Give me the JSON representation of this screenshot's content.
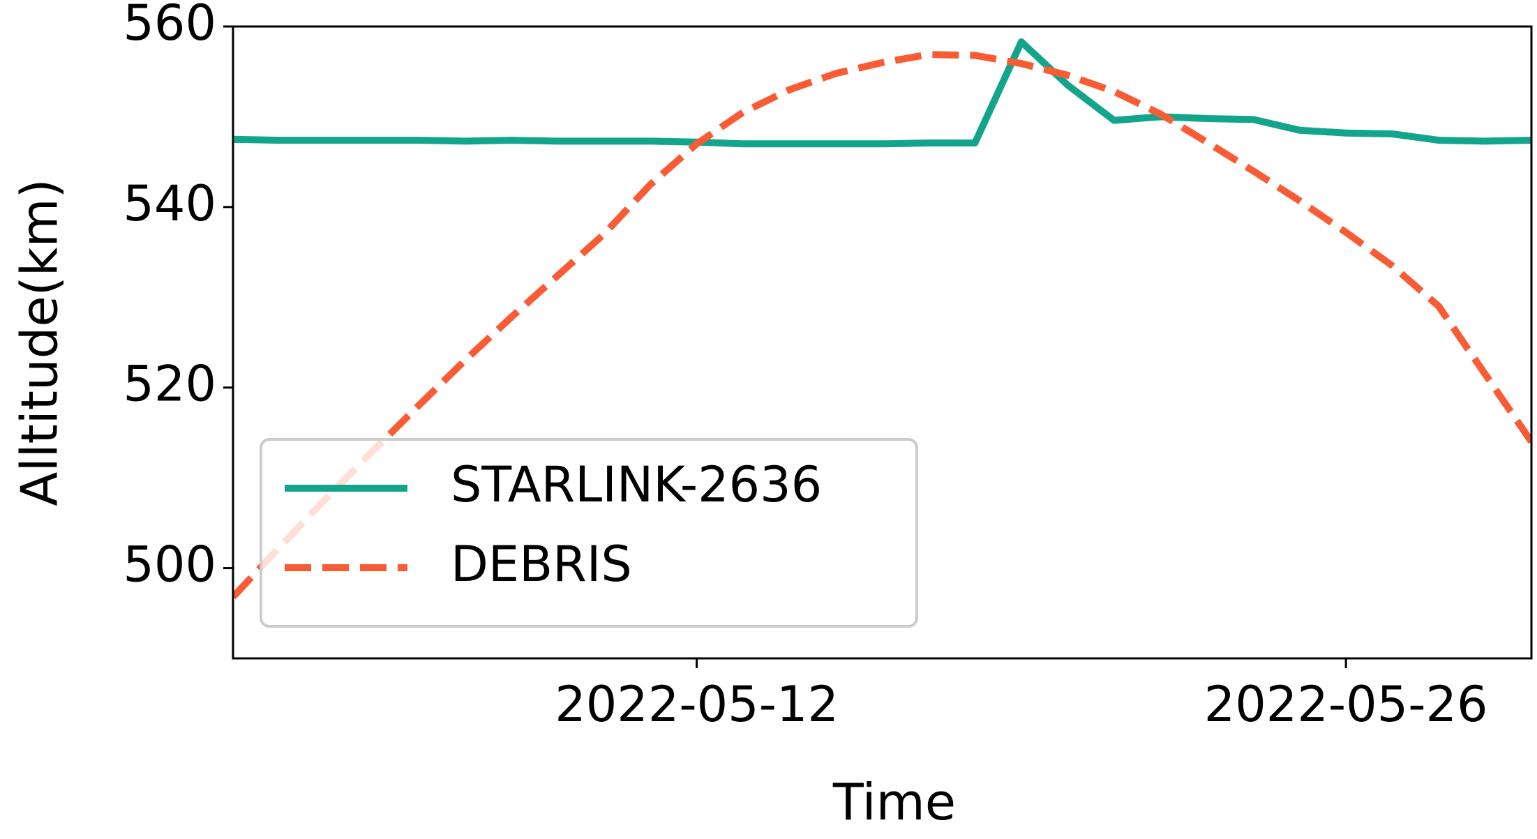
{
  "chart_data": {
    "type": "line",
    "x_label": "Time",
    "y_label": "Alltitude(km)",
    "x": [
      "2022-05-02",
      "2022-05-03",
      "2022-05-04",
      "2022-05-05",
      "2022-05-06",
      "2022-05-07",
      "2022-05-08",
      "2022-05-09",
      "2022-05-10",
      "2022-05-11",
      "2022-05-12",
      "2022-05-13",
      "2022-05-14",
      "2022-05-15",
      "2022-05-16",
      "2022-05-17",
      "2022-05-18",
      "2022-05-19",
      "2022-05-20",
      "2022-05-21",
      "2022-05-22",
      "2022-05-23",
      "2022-05-24",
      "2022-05-25",
      "2022-05-26",
      "2022-05-27",
      "2022-05-28",
      "2022-05-29",
      "2022-05-30"
    ],
    "series": [
      {
        "name": "STARLINK-2636",
        "color": "#13a58c",
        "dash": false,
        "values": [
          547.5,
          547.4,
          547.4,
          547.4,
          547.4,
          547.3,
          547.4,
          547.3,
          547.3,
          547.3,
          547.2,
          547.0,
          547.0,
          547.0,
          547.0,
          547.1,
          547.1,
          558.3,
          553.5,
          549.6,
          550.0,
          549.8,
          549.7,
          548.5,
          548.2,
          548.1,
          547.4,
          547.3,
          547.4
        ]
      },
      {
        "name": "DEBRIS",
        "color": "#f95b35",
        "dash": true,
        "values": [
          496.8,
          502.3,
          507.7,
          512.9,
          518.0,
          523.0,
          527.8,
          532.4,
          537.0,
          542.5,
          547.0,
          550.5,
          553.0,
          554.8,
          556.0,
          556.9,
          556.8,
          555.9,
          554.6,
          552.8,
          550.3,
          547.2,
          544.0,
          540.7,
          537.2,
          533.5,
          529.0,
          521.5,
          514.0
        ]
      }
    ],
    "xlim": [
      "2022-05-02",
      "2022-05-30"
    ],
    "xticks": [
      "2022-05-12",
      "2022-05-26"
    ],
    "ylim": [
      490,
      560
    ],
    "yticks": [
      500,
      520,
      540,
      560
    ],
    "legend": "lower left"
  }
}
